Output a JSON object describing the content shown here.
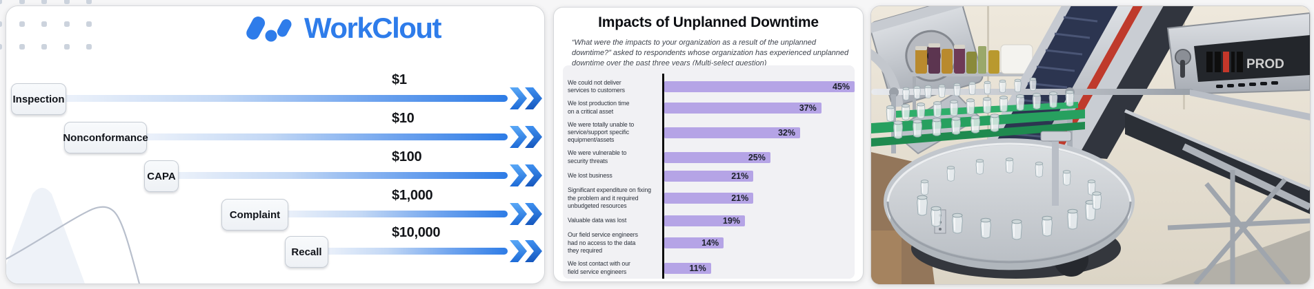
{
  "left_panel": {
    "brand": "WorkClout",
    "accent_color": "#2e7cea",
    "rows": [
      {
        "label": "Inspection",
        "value": "$1"
      },
      {
        "label": "Nonconformance",
        "value": "$10"
      },
      {
        "label": "CAPA",
        "value": "$100"
      },
      {
        "label": "Complaint",
        "value": "$1,000"
      },
      {
        "label": "Recall",
        "value": "$10,000"
      }
    ]
  },
  "chart_data": {
    "type": "bar",
    "orientation": "horizontal",
    "title": "Impacts of Unplanned Downtime",
    "subtitle": "“What were the impacts to your organization as a result of the unplanned downtime?” asked to respondents whose organization has experienced unplanned downtime over the past three years (Multi-select question)",
    "categories": [
      "We could not deliver\nservices to customers",
      "We lost production time\non a critical asset",
      "We were totally unable to\nservice/support specific\nequipment/assets",
      "We were vulnerable to\nsecurity threats",
      "We lost business",
      "Significant expenditure on fixing\nthe problem and it required\nunbudgeted resources",
      "Valuable data was lost",
      "Our field service engineers\nhad no access to the data\nthey required",
      "We lost contact with our\nfield service engineers"
    ],
    "values": [
      45,
      37,
      32,
      25,
      21,
      21,
      19,
      14,
      11
    ],
    "unit": "%",
    "xlim": [
      0,
      45
    ],
    "bar_color": "#b5a4e6",
    "axis_color": "#0a0a0a",
    "plot_bg": "#f1f1f4",
    "grid": false,
    "legend": false
  },
  "photo_panel": {
    "machine_label": "PROD"
  }
}
